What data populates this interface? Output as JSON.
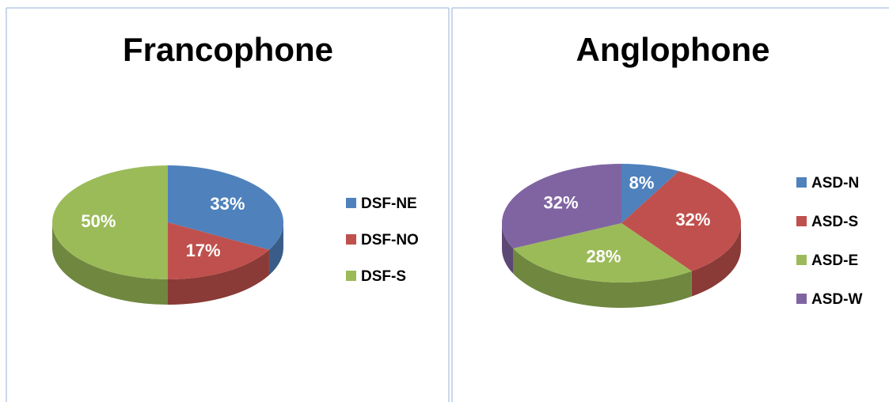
{
  "chart_data": [
    {
      "type": "pie",
      "title": "Francophone",
      "categories": [
        "DSF-NE",
        "DSF-NO",
        "DSF-S"
      ],
      "values": [
        33,
        17,
        50
      ],
      "value_labels": [
        "33%",
        "17%",
        "50%"
      ],
      "colors": [
        "#4f81bd",
        "#c0504d",
        "#9bbb59"
      ],
      "legend": "right"
    },
    {
      "type": "pie",
      "title": "Anglophone",
      "categories": [
        "ASD-N",
        "ASD-S",
        "ASD-E",
        "ASD-W"
      ],
      "values": [
        8,
        32,
        28,
        32
      ],
      "value_labels": [
        "8%",
        "32%",
        "28%",
        "32%"
      ],
      "colors": [
        "#4f81bd",
        "#c0504d",
        "#9bbb59",
        "#8064a2"
      ],
      "legend": "right"
    }
  ]
}
